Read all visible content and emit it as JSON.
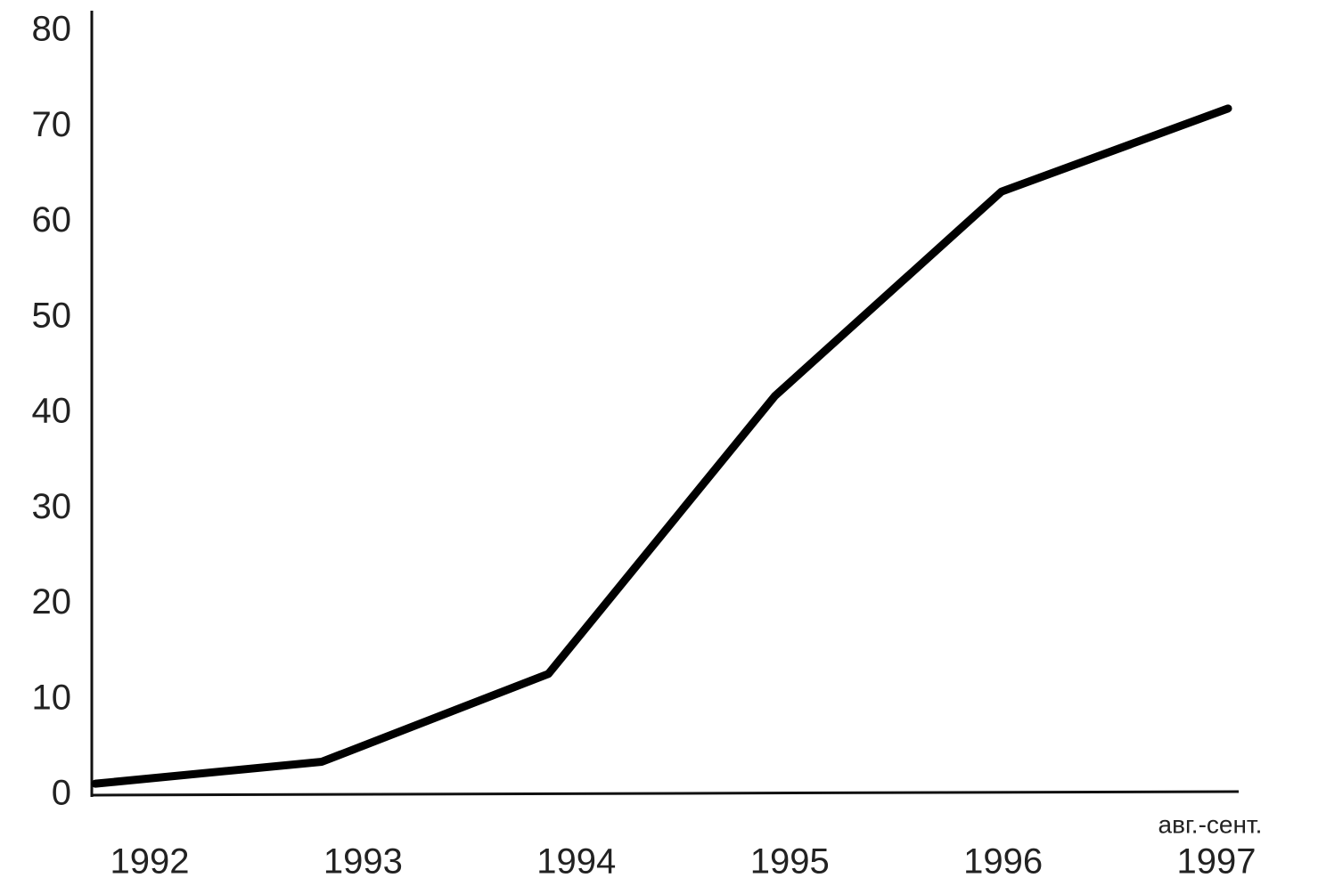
{
  "chart_data": {
    "type": "line",
    "categories": [
      "1992",
      "1993",
      "1994",
      "1995",
      "1996",
      "1997"
    ],
    "annotation": "авг.-сент.",
    "series": [
      {
        "color": "#000000",
        "values": [
          1.2,
          3.5,
          12.7,
          41.8,
          63.2,
          71.9
        ]
      }
    ],
    "ylim": [
      0,
      80
    ],
    "yticks": [
      0,
      10,
      20,
      30,
      40,
      50,
      60,
      70,
      80
    ],
    "grid": false
  }
}
